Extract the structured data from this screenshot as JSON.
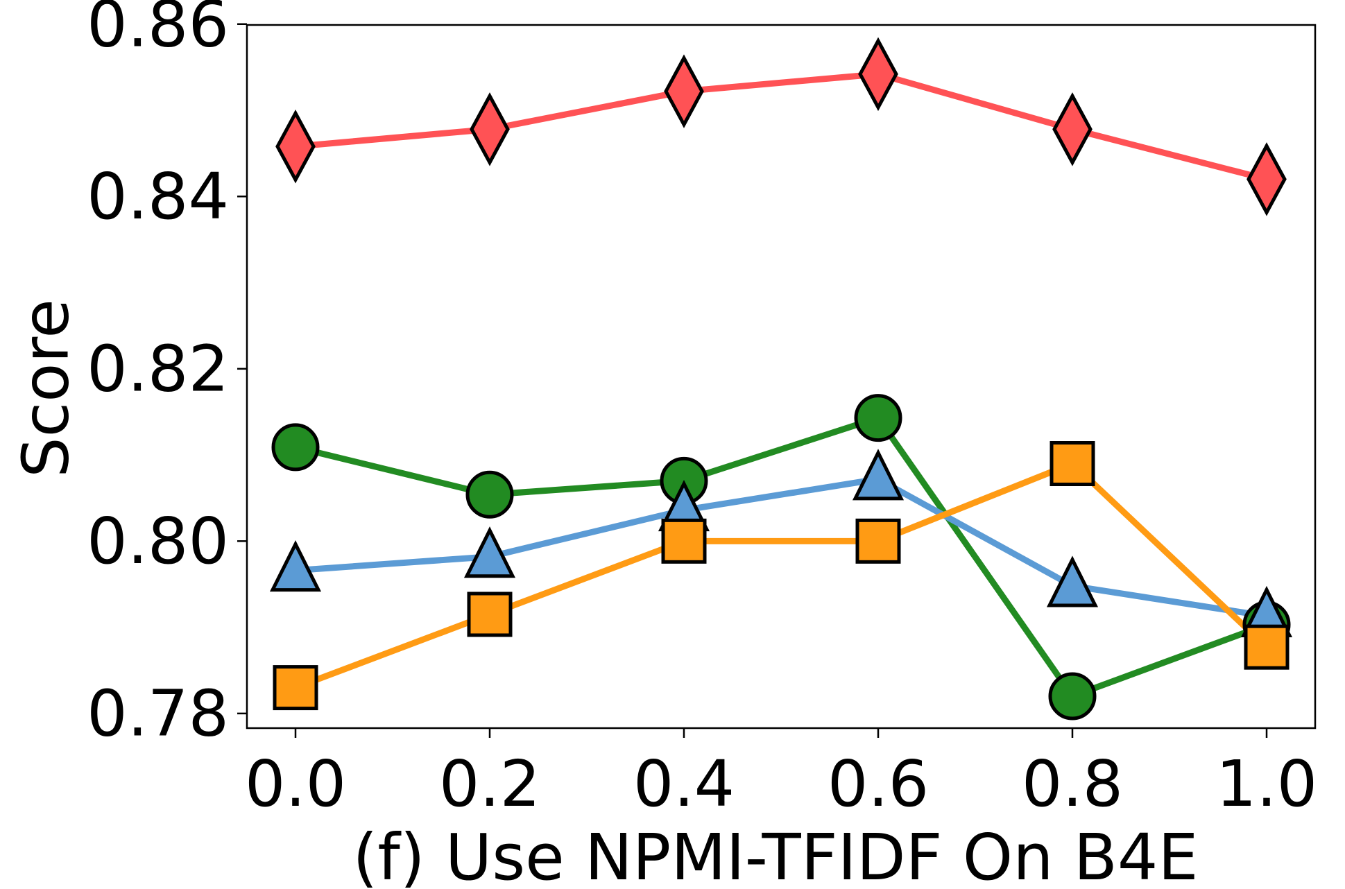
{
  "chart_data": {
    "type": "line",
    "title": "",
    "xlabel": "(f) Use NPMI-TFIDF On B4E",
    "ylabel": "Score",
    "x": [
      0.0,
      0.2,
      0.4,
      0.6,
      0.8,
      1.0
    ],
    "x_tick_labels": [
      "0.0",
      "0.2",
      "0.4",
      "0.6",
      "0.8",
      "1.0"
    ],
    "y_ticks": [
      0.78,
      0.8,
      0.82,
      0.84,
      0.86
    ],
    "y_tick_labels": [
      "0.78",
      "0.80",
      "0.82",
      "0.84",
      "0.86"
    ],
    "xlim": [
      -0.05,
      1.05
    ],
    "ylim": [
      0.7783,
      0.8599
    ],
    "grid": false,
    "series": [
      {
        "color": "#ff5255",
        "marker": "diamond",
        "values": [
          0.8458,
          0.8478,
          0.8522,
          0.8542,
          0.8478,
          0.842
        ]
      },
      {
        "color": "#228b22",
        "marker": "circle",
        "values": [
          0.8109,
          0.8054,
          0.807,
          0.8143,
          0.782,
          0.7903
        ]
      },
      {
        "color": "#5b9bd5",
        "marker": "triangle",
        "values": [
          0.7966,
          0.7982,
          0.8036,
          0.8072,
          0.7948,
          0.7913
        ]
      },
      {
        "color": "#ff9b14",
        "marker": "square",
        "values": [
          0.783,
          0.7915,
          0.8,
          0.8,
          0.809,
          0.7877
        ]
      }
    ]
  }
}
